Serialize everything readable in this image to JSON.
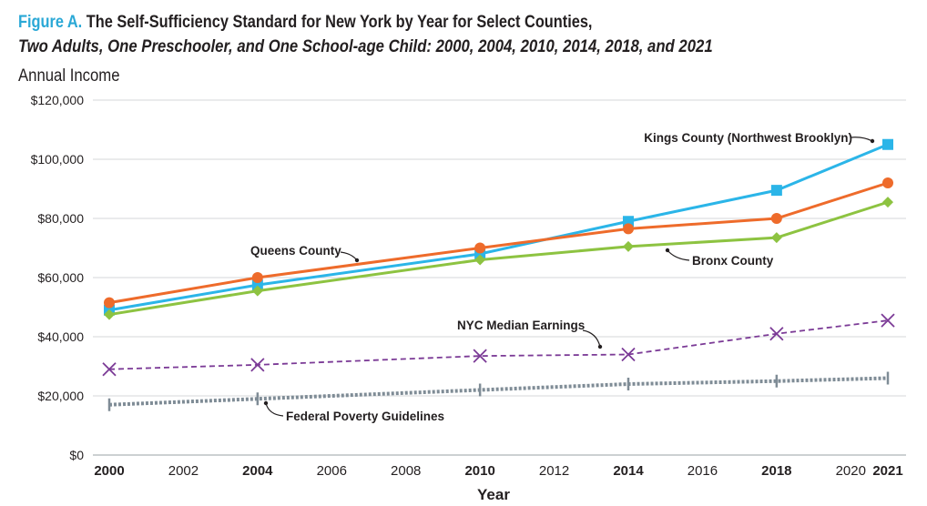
{
  "figure_label": "Figure A.",
  "title_text": "The Self-Sufficiency Standard for New York by Year for Select Counties,",
  "subtitle": "Two Adults, One Preschooler, and One School-age Child: 2000, 2004, 2010, 2014, 2018, and 2021",
  "chart_data": {
    "type": "line",
    "title": "Figure A. The Self-Sufficiency Standard for New York by Year for Select Counties,",
    "subtitle": "Two Adults, One Preschooler, and One School-age Child: 2000, 2004, 2010, 2014, 2018, and 2021",
    "ylabel": "Annual Income",
    "xlabel": "Year",
    "x": [
      2000,
      2004,
      2010,
      2014,
      2018,
      2021
    ],
    "xlim": [
      2000,
      2021
    ],
    "ylim": [
      0,
      120000
    ],
    "x_ticks": [
      2000,
      2002,
      2004,
      2006,
      2008,
      2010,
      2012,
      2014,
      2016,
      2018,
      2020,
      2021
    ],
    "x_ticks_bold": [
      2000,
      2004,
      2010,
      2014,
      2018,
      2021
    ],
    "y_ticks": [
      0,
      20000,
      40000,
      60000,
      80000,
      100000,
      120000
    ],
    "y_tick_labels": [
      "$0",
      "$20,000",
      "$40,000",
      "$60,000",
      "$80,000",
      "$100,000",
      "$120,000"
    ],
    "grid": "horizontal",
    "series": [
      {
        "name": "Kings County (Northwest Brooklyn)",
        "color": "#2bb5e8",
        "marker": "square",
        "dash": "solid",
        "values": [
          49000,
          57500,
          68000,
          79000,
          89500,
          105000
        ]
      },
      {
        "name": "Queens County",
        "color": "#ee6b2b",
        "marker": "circle",
        "dash": "solid",
        "values": [
          51500,
          60000,
          70000,
          76500,
          80000,
          92000
        ]
      },
      {
        "name": "Bronx County",
        "color": "#8dc341",
        "marker": "diamond",
        "dash": "solid",
        "values": [
          47500,
          55500,
          66000,
          70500,
          73500,
          85500
        ]
      },
      {
        "name": "NYC Median Earnings",
        "color": "#7b3a96",
        "marker": "x",
        "dash": "dashed",
        "values": [
          29000,
          30500,
          33500,
          34000,
          41000,
          45500
        ]
      },
      {
        "name": "Federal Poverty Guidelines",
        "color": "#7f8c96",
        "marker": "tick",
        "dash": "dotted",
        "values": [
          17000,
          19000,
          22000,
          24000,
          25000,
          26000
        ]
      }
    ]
  }
}
